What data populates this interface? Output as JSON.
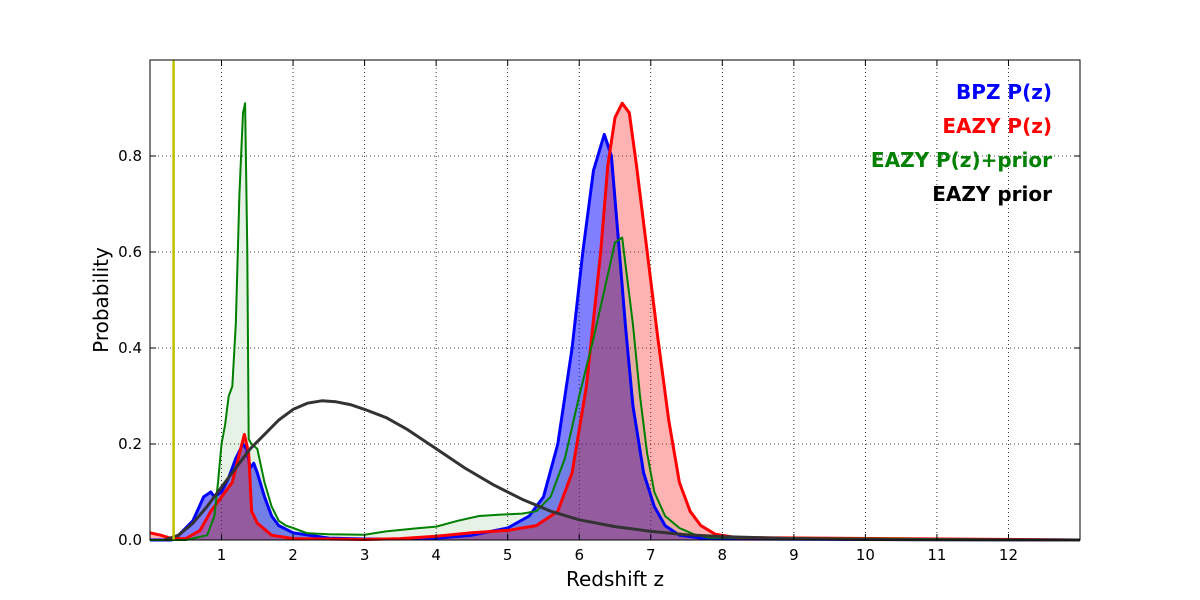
{
  "chart_data": {
    "type": "area",
    "xlabel": "Redshift z",
    "ylabel": "Probability",
    "xlim": [
      0,
      13
    ],
    "ylim": [
      0,
      1.0
    ],
    "x_ticks": [
      1,
      2,
      3,
      4,
      5,
      6,
      7,
      8,
      9,
      10,
      11,
      12
    ],
    "x_tick_labels": [
      "1",
      "2",
      "3",
      "4",
      "5",
      "6",
      "7",
      "8",
      "9",
      "10",
      "11",
      "12"
    ],
    "y_ticks": [
      0.0,
      0.2,
      0.4,
      0.6,
      0.8
    ],
    "y_tick_labels": [
      "0.0",
      "0.2",
      "0.4",
      "0.6",
      "0.8"
    ],
    "grid": true,
    "legend_position": "top-right",
    "vertical_line": {
      "x": 0.33,
      "color": "#bfbf00"
    },
    "series": [
      {
        "name": "BPZ P(z)",
        "color": "#0000ff",
        "fill": "#0000ff",
        "fill_opacity": 0.5,
        "line_width": 3,
        "points": [
          [
            0,
            0
          ],
          [
            0.3,
            0
          ],
          [
            0.4,
            0.01
          ],
          [
            0.6,
            0.04
          ],
          [
            0.75,
            0.09
          ],
          [
            0.85,
            0.1
          ],
          [
            0.9,
            0.09
          ],
          [
            1.0,
            0.1
          ],
          [
            1.1,
            0.13
          ],
          [
            1.2,
            0.17
          ],
          [
            1.3,
            0.2
          ],
          [
            1.35,
            0.19
          ],
          [
            1.4,
            0.15
          ],
          [
            1.45,
            0.16
          ],
          [
            1.5,
            0.14
          ],
          [
            1.6,
            0.09
          ],
          [
            1.7,
            0.05
          ],
          [
            1.8,
            0.03
          ],
          [
            2.0,
            0.015
          ],
          [
            2.5,
            0.004
          ],
          [
            3.0,
            0.002
          ],
          [
            3.5,
            0.002
          ],
          [
            4.0,
            0.004
          ],
          [
            4.5,
            0.01
          ],
          [
            5.0,
            0.025
          ],
          [
            5.3,
            0.05
          ],
          [
            5.5,
            0.09
          ],
          [
            5.7,
            0.2
          ],
          [
            5.9,
            0.4
          ],
          [
            6.05,
            0.6
          ],
          [
            6.2,
            0.77
          ],
          [
            6.35,
            0.845
          ],
          [
            6.45,
            0.8
          ],
          [
            6.55,
            0.62
          ],
          [
            6.65,
            0.44
          ],
          [
            6.75,
            0.28
          ],
          [
            6.9,
            0.14
          ],
          [
            7.05,
            0.07
          ],
          [
            7.2,
            0.03
          ],
          [
            7.4,
            0.01
          ],
          [
            7.8,
            0.002
          ],
          [
            13,
            0
          ]
        ]
      },
      {
        "name": "EAZY P(z)",
        "color": "#ff0000",
        "fill": "#ff0000",
        "fill_opacity": 0.3,
        "line_width": 3,
        "points": [
          [
            0,
            0.015
          ],
          [
            0.15,
            0.01
          ],
          [
            0.3,
            0.003
          ],
          [
            0.5,
            0.003
          ],
          [
            0.7,
            0.02
          ],
          [
            0.85,
            0.06
          ],
          [
            0.95,
            0.08
          ],
          [
            1.05,
            0.1
          ],
          [
            1.15,
            0.12
          ],
          [
            1.25,
            0.18
          ],
          [
            1.32,
            0.22
          ],
          [
            1.38,
            0.18
          ],
          [
            1.42,
            0.06
          ],
          [
            1.5,
            0.035
          ],
          [
            1.7,
            0.01
          ],
          [
            2.0,
            0.003
          ],
          [
            3.0,
            0.001
          ],
          [
            3.5,
            0.003
          ],
          [
            4.0,
            0.008
          ],
          [
            4.5,
            0.015
          ],
          [
            5.0,
            0.02
          ],
          [
            5.4,
            0.03
          ],
          [
            5.7,
            0.06
          ],
          [
            5.9,
            0.14
          ],
          [
            6.1,
            0.32
          ],
          [
            6.3,
            0.6
          ],
          [
            6.4,
            0.78
          ],
          [
            6.5,
            0.88
          ],
          [
            6.6,
            0.91
          ],
          [
            6.7,
            0.89
          ],
          [
            6.8,
            0.78
          ],
          [
            6.95,
            0.6
          ],
          [
            7.1,
            0.42
          ],
          [
            7.25,
            0.25
          ],
          [
            7.4,
            0.12
          ],
          [
            7.55,
            0.06
          ],
          [
            7.7,
            0.03
          ],
          [
            7.9,
            0.012
          ],
          [
            8.2,
            0.005
          ],
          [
            13,
            0
          ]
        ]
      },
      {
        "name": "EAZY P(z)+prior",
        "color": "#008000",
        "fill": "#008000",
        "fill_opacity": 0.1,
        "line_width": 2,
        "points": [
          [
            0,
            0
          ],
          [
            0.5,
            0
          ],
          [
            0.8,
            0.01
          ],
          [
            0.9,
            0.05
          ],
          [
            0.95,
            0.12
          ],
          [
            1.0,
            0.2
          ],
          [
            1.05,
            0.24
          ],
          [
            1.1,
            0.3
          ],
          [
            1.15,
            0.32
          ],
          [
            1.2,
            0.45
          ],
          [
            1.25,
            0.72
          ],
          [
            1.3,
            0.89
          ],
          [
            1.33,
            0.91
          ],
          [
            1.36,
            0.6
          ],
          [
            1.38,
            0.21
          ],
          [
            1.42,
            0.2
          ],
          [
            1.5,
            0.19
          ],
          [
            1.6,
            0.12
          ],
          [
            1.7,
            0.07
          ],
          [
            1.8,
            0.04
          ],
          [
            1.9,
            0.03
          ],
          [
            2.0,
            0.025
          ],
          [
            2.2,
            0.014
          ],
          [
            2.5,
            0.012
          ],
          [
            3.0,
            0.011
          ],
          [
            3.3,
            0.018
          ],
          [
            3.7,
            0.024
          ],
          [
            4.0,
            0.028
          ],
          [
            4.3,
            0.04
          ],
          [
            4.6,
            0.05
          ],
          [
            4.9,
            0.053
          ],
          [
            5.2,
            0.055
          ],
          [
            5.4,
            0.06
          ],
          [
            5.6,
            0.09
          ],
          [
            5.8,
            0.17
          ],
          [
            6.0,
            0.3
          ],
          [
            6.2,
            0.42
          ],
          [
            6.35,
            0.52
          ],
          [
            6.5,
            0.62
          ],
          [
            6.6,
            0.63
          ],
          [
            6.65,
            0.57
          ],
          [
            6.75,
            0.45
          ],
          [
            6.85,
            0.3
          ],
          [
            6.95,
            0.18
          ],
          [
            7.05,
            0.1
          ],
          [
            7.2,
            0.05
          ],
          [
            7.4,
            0.025
          ],
          [
            7.6,
            0.012
          ],
          [
            7.8,
            0.005
          ],
          [
            13,
            0
          ]
        ]
      },
      {
        "name": "EAZY prior",
        "color": "#333333",
        "fill": "none",
        "line_width": 3,
        "points": [
          [
            0.2,
            0
          ],
          [
            0.4,
            0.01
          ],
          [
            0.6,
            0.035
          ],
          [
            0.8,
            0.07
          ],
          [
            1.0,
            0.11
          ],
          [
            1.2,
            0.15
          ],
          [
            1.4,
            0.19
          ],
          [
            1.6,
            0.22
          ],
          [
            1.8,
            0.25
          ],
          [
            2.0,
            0.272
          ],
          [
            2.2,
            0.285
          ],
          [
            2.4,
            0.29
          ],
          [
            2.6,
            0.288
          ],
          [
            2.8,
            0.282
          ],
          [
            3.0,
            0.272
          ],
          [
            3.3,
            0.255
          ],
          [
            3.6,
            0.23
          ],
          [
            4.0,
            0.19
          ],
          [
            4.4,
            0.15
          ],
          [
            4.8,
            0.115
          ],
          [
            5.2,
            0.085
          ],
          [
            5.6,
            0.06
          ],
          [
            6.0,
            0.042
          ],
          [
            6.5,
            0.028
          ],
          [
            7.0,
            0.018
          ],
          [
            7.5,
            0.011
          ],
          [
            8.0,
            0.007
          ],
          [
            9.0,
            0.003
          ],
          [
            10.0,
            0.001
          ],
          [
            11.0,
            0.0005
          ],
          [
            12.0,
            0.0002
          ],
          [
            13,
            0
          ]
        ]
      }
    ]
  }
}
